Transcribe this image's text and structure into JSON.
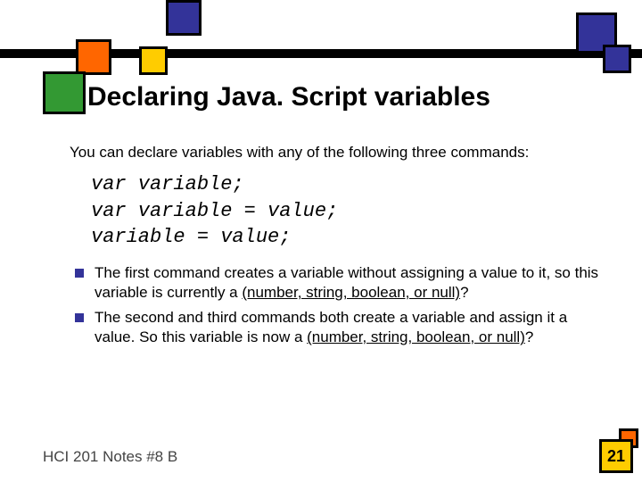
{
  "title": "Declaring Java. Script variables",
  "intro": "You can declare variables with any of the following three commands:",
  "code_lines": [
    "var variable;",
    "var variable = value;",
    "variable = value;"
  ],
  "bullets": [
    {
      "pre": "The first command creates a variable without assigning a value to it, so this variable is currently a ",
      "ul": "(number, string, boolean, or null)",
      "post": "?"
    },
    {
      "pre": "The second and third commands both create a variable and assign it a value. So this variable is now a ",
      "ul": "(number, string, boolean, or null)",
      "post": "?"
    }
  ],
  "footer": "HCI 201 Notes #8 B",
  "page_number": "21",
  "colors": {
    "blue": "#333399",
    "yellow": "#ffcc00",
    "orange": "#ff6600",
    "green": "#339933",
    "black": "#000000",
    "white": "#ffffff"
  }
}
